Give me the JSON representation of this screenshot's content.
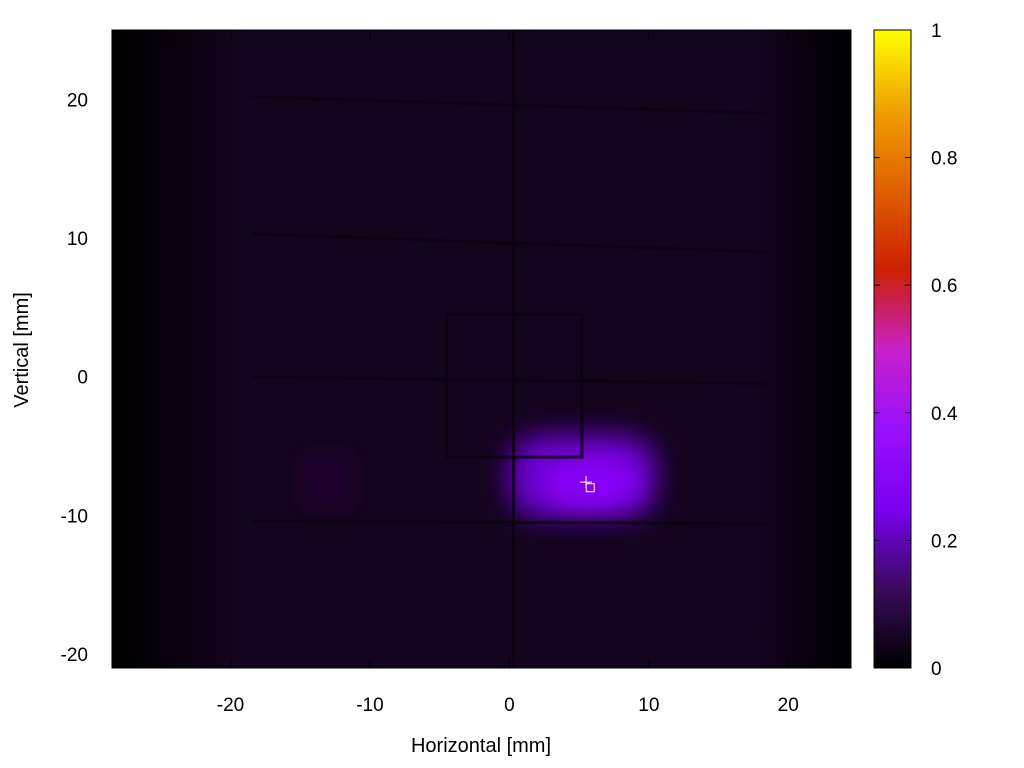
{
  "chart_data": {
    "type": "heatmap",
    "title": "",
    "xlabel": "Horizontal [mm]",
    "ylabel": "Vertical [mm]",
    "xlim": [
      -28.5,
      24.5
    ],
    "ylim": [
      -21,
      25
    ],
    "x_ticks": [
      {
        "value": -20,
        "label": "-20"
      },
      {
        "value": -10,
        "label": "-10"
      },
      {
        "value": 0,
        "label": "0"
      },
      {
        "value": 10,
        "label": "10"
      },
      {
        "value": 20,
        "label": "20"
      }
    ],
    "y_ticks": [
      {
        "value": 20,
        "label": "20"
      },
      {
        "value": 10,
        "label": "10"
      },
      {
        "value": 0,
        "label": "0"
      },
      {
        "value": -10,
        "label": "-10"
      },
      {
        "value": -20,
        "label": "-20"
      }
    ],
    "colorbar": {
      "range": [
        0,
        1
      ],
      "ticks": [
        {
          "value": 0,
          "label": "0"
        },
        {
          "value": 0.2,
          "label": "0.2"
        },
        {
          "value": 0.4,
          "label": "0.4"
        },
        {
          "value": 0.6,
          "label": "0.6"
        },
        {
          "value": 0.8,
          "label": "0.8"
        },
        {
          "value": 1,
          "label": "1"
        }
      ],
      "colormap": [
        "#000000",
        "#3a0a5c",
        "#7a00f0",
        "#9a10ff",
        "#c820c8",
        "#cc2000",
        "#e06000",
        "#f0a000",
        "#ffff00"
      ]
    },
    "background_level": 0.04,
    "hotspots": [
      {
        "name": "main-spot",
        "x_range": [
          0,
          10.5
        ],
        "y_range": [
          -10.2,
          -4.2
        ],
        "peak": 0.3
      },
      {
        "name": "faint-spot",
        "x_range": [
          -15,
          -11
        ],
        "y_range": [
          -9.5,
          -5.5
        ],
        "peak": 0.08
      }
    ],
    "markers": [
      {
        "name": "cross-marker",
        "x": 5.5,
        "y": -7.6
      },
      {
        "name": "square-marker",
        "x": 5.8,
        "y": -8.0
      }
    ]
  }
}
